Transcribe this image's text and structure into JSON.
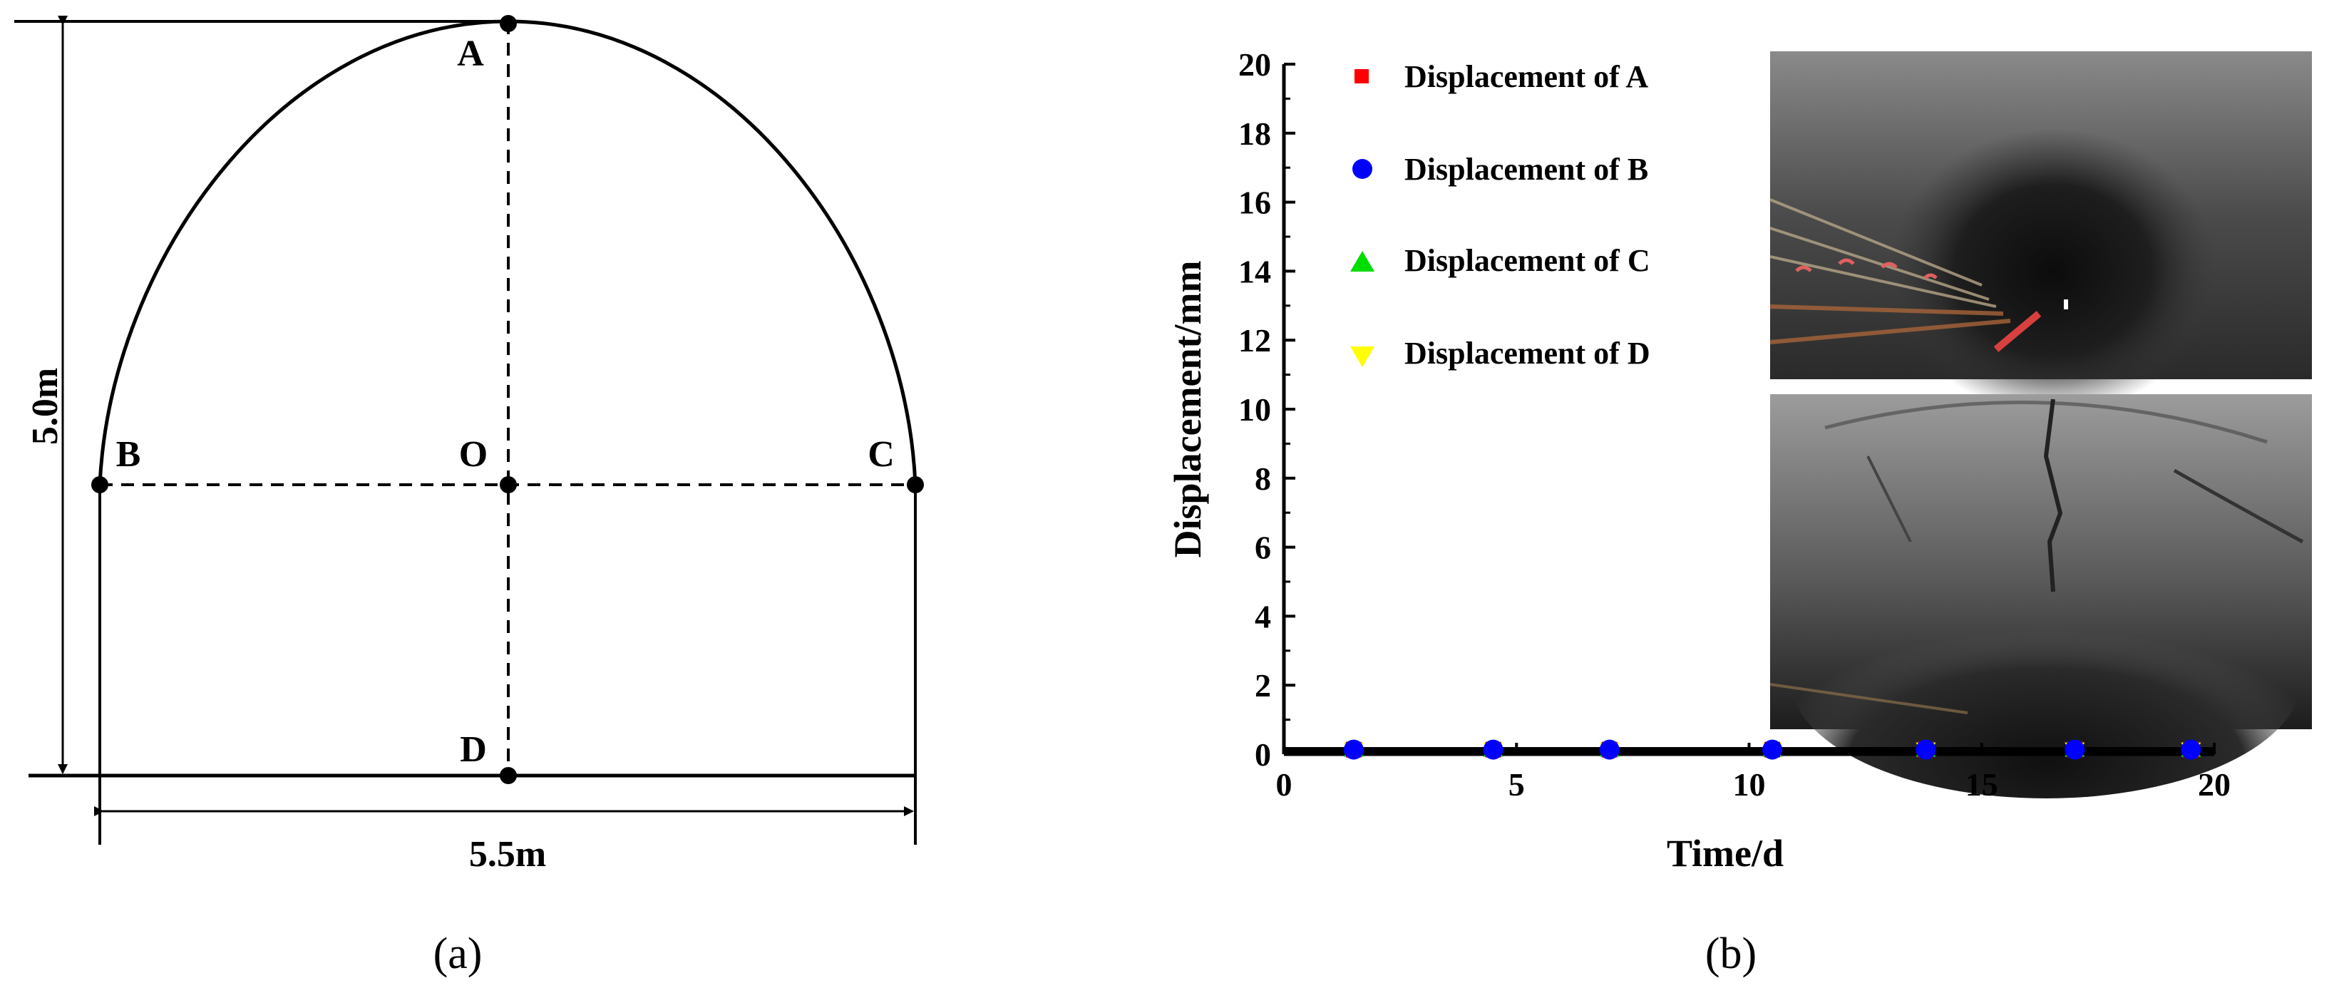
{
  "figure": {
    "panel_a": {
      "caption": "(a)",
      "points": [
        "A",
        "B",
        "C",
        "D",
        "O"
      ],
      "height_dimension": "5.0m",
      "width_dimension": "5.5m"
    },
    "panel_b": {
      "caption": "(b)",
      "photos": [
        "tunnel-photo-upper",
        "tunnel-photo-lower"
      ]
    }
  },
  "chart_data": {
    "type": "scatter",
    "xlabel": "Time/d",
    "ylabel": "Displacement/mm",
    "xlim": [
      0,
      20
    ],
    "ylim": [
      0,
      20
    ],
    "xticks": [
      "0",
      "5",
      "10",
      "15",
      "20"
    ],
    "yticks": [
      "0",
      "2",
      "4",
      "6",
      "8",
      "10",
      "12",
      "14",
      "16",
      "18",
      "20"
    ],
    "legend_position": "top-left",
    "grid": false,
    "series": [
      {
        "name": "Displacement of A",
        "marker": "square",
        "color": "#ff0000",
        "points": [
          [
            1.5,
            0.05
          ],
          [
            4.5,
            0.05
          ],
          [
            7.0,
            0.05
          ],
          [
            10.5,
            0.05
          ],
          [
            13.8,
            0.05
          ],
          [
            17.0,
            0.05
          ],
          [
            19.5,
            0.05
          ]
        ]
      },
      {
        "name": "Displacement of B",
        "marker": "circle",
        "color": "#0000ff",
        "points": [
          [
            1.5,
            0.05
          ],
          [
            4.5,
            0.05
          ],
          [
            7.0,
            0.05
          ],
          [
            10.5,
            0.05
          ],
          [
            13.8,
            0.05
          ],
          [
            17.0,
            0.05
          ],
          [
            19.5,
            0.05
          ]
        ]
      },
      {
        "name": "Displacement of C",
        "marker": "triangle-up",
        "color": "#00dd00",
        "points": [
          [
            1.5,
            0.05
          ],
          [
            4.5,
            0.05
          ],
          [
            7.0,
            0.05
          ],
          [
            10.5,
            0.05
          ],
          [
            13.8,
            0.05
          ],
          [
            17.0,
            0.05
          ],
          [
            19.5,
            0.05
          ]
        ]
      },
      {
        "name": "Displacement of D",
        "marker": "triangle-down",
        "color": "#ffff00",
        "points": [
          [
            1.5,
            0.05
          ],
          [
            4.5,
            0.05
          ],
          [
            7.0,
            0.05
          ],
          [
            10.5,
            0.05
          ],
          [
            13.8,
            0.05
          ],
          [
            17.0,
            0.05
          ],
          [
            19.5,
            0.05
          ]
        ]
      }
    ]
  }
}
